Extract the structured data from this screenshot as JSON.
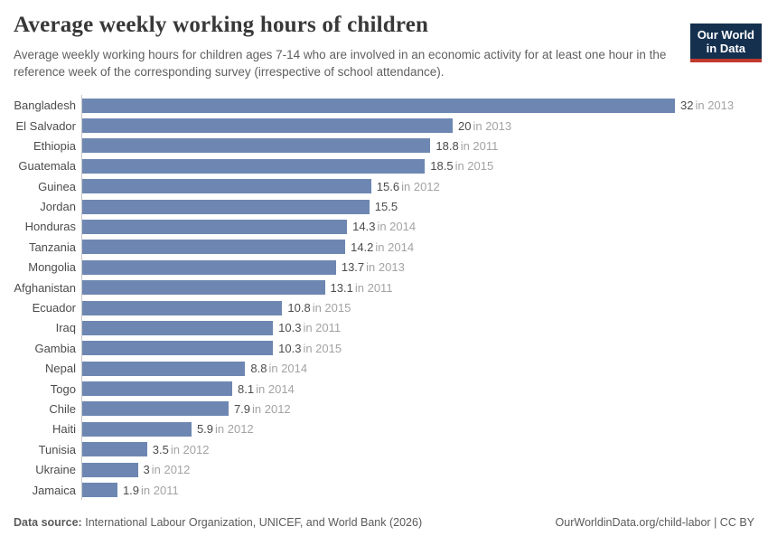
{
  "header": {
    "title": "Average weekly working hours of children",
    "subtitle": "Average weekly working hours for children ages 7-14 who are involved in an economic activity for at least one hour in the reference week of the corresponding survey (irrespective of school attendance).",
    "logo": {
      "line1": "Our World",
      "line2": "in Data"
    }
  },
  "chart_data": {
    "type": "bar",
    "orientation": "horizontal",
    "title": "Average weekly working hours of children",
    "xlabel": "",
    "ylabel": "",
    "xlim": [
      0,
      32
    ],
    "grid": false,
    "legend": "none",
    "categories": [
      "Bangladesh",
      "El Salvador",
      "Ethiopia",
      "Guatemala",
      "Guinea",
      "Jordan",
      "Honduras",
      "Tanzania",
      "Mongolia",
      "Afghanistan",
      "Ecuador",
      "Iraq",
      "Gambia",
      "Nepal",
      "Togo",
      "Chile",
      "Haiti",
      "Tunisia",
      "Ukraine",
      "Jamaica"
    ],
    "values": [
      32,
      20,
      18.8,
      18.5,
      15.6,
      15.5,
      14.3,
      14.2,
      13.7,
      13.1,
      10.8,
      10.3,
      10.3,
      8.8,
      8.1,
      7.9,
      5.9,
      3.5,
      3,
      1.9
    ],
    "year_suffixes": [
      "in 2013",
      "in 2013",
      "in 2011",
      "in 2015",
      "in 2012",
      "",
      "in 2014",
      "in 2014",
      "in 2013",
      "in 2011",
      "in 2015",
      "in 2011",
      "in 2015",
      "in 2014",
      "in 2014",
      "in 2012",
      "in 2012",
      "in 2012",
      "in 2012",
      "in 2011"
    ],
    "bar_color": "#6e87b2"
  },
  "colors": {
    "bar": "#6e87b2",
    "axis_line": "#c7c7c7",
    "logo_background": "#15304f",
    "logo_stripe": "#c0392f",
    "value_text": "#4c4c4c",
    "year_text": "#a3a3a3"
  },
  "footer": {
    "source_label": "Data source:",
    "source_text": "International Labour Organization, UNICEF, and World Bank (2026)",
    "link_text": "OurWorldinData.org/child-labor | CC BY"
  }
}
